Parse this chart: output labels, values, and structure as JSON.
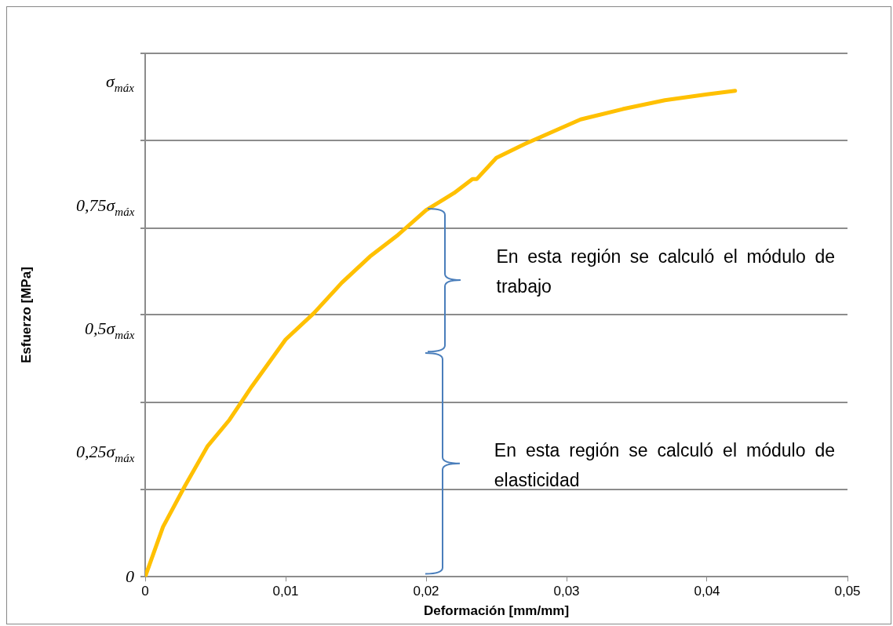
{
  "chart_data": {
    "type": "line",
    "xlabel": "Deformación [mm/mm]",
    "ylabel": "Esfuerzo [MPa]",
    "x": [
      0,
      0.00127,
      0.00283,
      0.00445,
      0.006,
      0.0076,
      0.01,
      0.012,
      0.014,
      0.016,
      0.018,
      0.02,
      0.022,
      0.0233,
      0.0236,
      0.025,
      0.027,
      0.029,
      0.031,
      0.034,
      0.037,
      0.04,
      0.042
    ],
    "series": [
      {
        "color": "#ffc000",
        "values": [
          0,
          0.101,
          0.184,
          0.265,
          0.318,
          0.386,
          0.481,
          0.534,
          0.596,
          0.649,
          0.693,
          0.743,
          0.778,
          0.806,
          0.806,
          0.849,
          0.877,
          0.902,
          0.927,
          0.948,
          0.966,
          0.978,
          0.985
        ]
      }
    ],
    "xlim": [
      0,
      0.05
    ],
    "xticks": [
      {
        "value": 0,
        "label": "0"
      },
      {
        "value": 0.01,
        "label": "0,01"
      },
      {
        "value": 0.02,
        "label": "0,02"
      },
      {
        "value": 0.03,
        "label": "0,03"
      },
      {
        "value": 0.04,
        "label": "0,04"
      },
      {
        "value": 0.05,
        "label": "0,05"
      }
    ],
    "ylim": [
      0,
      1.061
    ],
    "yticks": [
      {
        "value": 0,
        "label": "0"
      },
      {
        "value": 0.177,
        "label": null
      },
      {
        "value": 0.25,
        "label": "0,25σ$_{máx}$"
      },
      {
        "value": 0.354,
        "label": null
      },
      {
        "value": 0.5,
        "label": "0,5σ$_{máx}$"
      },
      {
        "value": 0.531,
        "label": null
      },
      {
        "value": 0.707,
        "label": null
      },
      {
        "value": 0.75,
        "label": "0,75σ$_{máx}$"
      },
      {
        "value": 0.884,
        "label": null
      },
      {
        "value": 1,
        "label": "σ$_{máx}$"
      },
      {
        "value": 1.061,
        "label": null
      }
    ],
    "grid": "y",
    "legend": false,
    "marker": "none",
    "line_style": "solid",
    "annotations": [
      "En esta región se calculó el módulo de trabajo",
      "En esta región se calculó el módulo de elasticidad"
    ]
  }
}
